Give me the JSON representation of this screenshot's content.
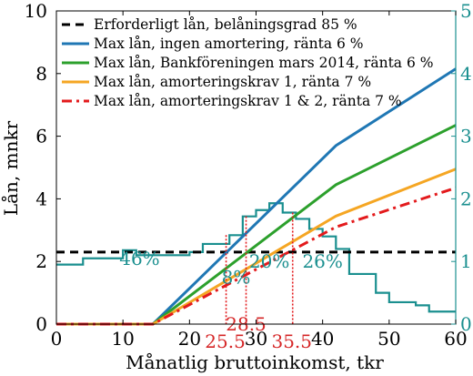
{
  "chart_data": {
    "type": "line",
    "xlabel": "Månatlig bruttoinkomst, tkr",
    "ylabel": "Lån, mnkr",
    "xlim": [
      0,
      60
    ],
    "ylim": [
      0,
      10
    ],
    "y2lim": [
      0,
      5
    ],
    "x_ticks": [
      0,
      10,
      20,
      30,
      40,
      50,
      60
    ],
    "y_ticks": [
      0,
      2,
      4,
      6,
      8,
      10
    ],
    "y2_ticks": [
      0,
      1,
      2,
      3,
      4,
      5
    ],
    "colors": {
      "axes": "#000000",
      "right_axis": "#1a8f8f",
      "series": [
        "#000000",
        "#1f77b4",
        "#2ca02c",
        "#f5a623",
        "#e31a1c"
      ],
      "distribution": "#1a8f8f",
      "markers": "#e31a1c"
    },
    "legend_position": "top-left",
    "series": [
      {
        "name": "Erforderligt lån, belåningsgrad 85 %",
        "style": "dashed",
        "x": [
          0,
          60
        ],
        "y": [
          2.3,
          2.3
        ]
      },
      {
        "name": "Max lån, ingen amortering, ränta 6 %",
        "style": "solid",
        "x": [
          0,
          14.5,
          42,
          60
        ],
        "y": [
          0,
          0,
          5.7,
          8.15
        ]
      },
      {
        "name": "Max lån, Bankföreningen mars 2014, ränta 6 %",
        "style": "solid",
        "x": [
          0,
          14.5,
          42,
          60
        ],
        "y": [
          0,
          0,
          4.45,
          6.35
        ]
      },
      {
        "name": "Max lån, amorteringskrav 1, ränta 7 %",
        "style": "solid",
        "x": [
          0,
          14.5,
          42,
          60
        ],
        "y": [
          0,
          0,
          3.45,
          4.95
        ]
      },
      {
        "name": "Max lån, amorteringskrav 1 & 2, ränta 7 %",
        "style": "dashdot",
        "x": [
          0,
          14.5,
          42,
          60
        ],
        "y": [
          0,
          0,
          3.1,
          4.35
        ]
      }
    ],
    "distribution": {
      "axis": "right",
      "x": [
        0,
        2,
        4,
        6,
        8,
        10,
        12,
        14,
        16,
        18,
        20,
        22,
        24,
        26,
        28,
        30,
        32,
        34,
        36,
        38,
        40,
        42,
        44,
        46,
        48,
        50,
        52,
        54,
        56,
        58,
        60
      ],
      "y": [
        0.95,
        0.95,
        1.05,
        1.05,
        1.05,
        1.18,
        1.1,
        1.1,
        1.1,
        1.1,
        1.15,
        1.28,
        1.28,
        1.42,
        1.72,
        1.82,
        1.93,
        1.78,
        1.68,
        1.52,
        1.4,
        1.2,
        0.8,
        0.8,
        0.5,
        0.35,
        0.35,
        0.3,
        0.2,
        0.2,
        0.2
      ]
    },
    "vertical_markers": [
      {
        "x": 25.5,
        "label": "25.5"
      },
      {
        "x": 28.5,
        "label": "28.5"
      },
      {
        "x": 35.5,
        "label": "35.5"
      }
    ],
    "percent_annotations": [
      {
        "x": 12.5,
        "y": 1.05,
        "text": "46%"
      },
      {
        "x": 27,
        "y": 0.75,
        "text": "8%"
      },
      {
        "x": 32,
        "y": 1.0,
        "text": "20%"
      },
      {
        "x": 40,
        "y": 1.0,
        "text": "26%"
      }
    ]
  }
}
